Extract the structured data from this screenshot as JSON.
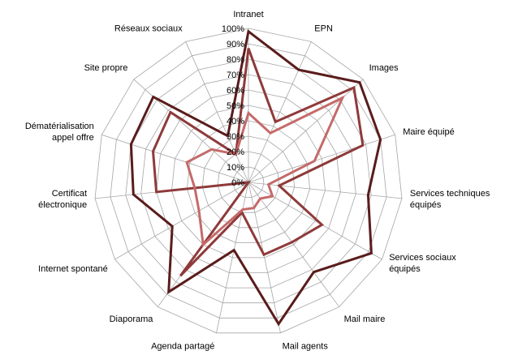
{
  "chart_data": {
    "type": "radar",
    "title": "",
    "categories": [
      [
        "Intranet"
      ],
      [
        "EPN"
      ],
      [
        "Images"
      ],
      [
        "Maire équipé"
      ],
      [
        "Services techniques",
        "équipés"
      ],
      [
        "Services sociaux",
        "équipés"
      ],
      [
        "Mail maire"
      ],
      [
        "Mail agents"
      ],
      [
        "Agenda partagé"
      ],
      [
        "Diaporama"
      ],
      [
        "Internet spontané"
      ],
      [
        "Certificat",
        "électronique"
      ],
      [
        "Dématérialisation",
        "appel offre"
      ],
      [
        "Site propre"
      ],
      [
        "Réseaux sociaux"
      ]
    ],
    "ticks": [
      "0%",
      "10%",
      "20%",
      "30%",
      "40%",
      "50%",
      "60%",
      "70%",
      "80%",
      "90%",
      "100%"
    ],
    "rmax": 100,
    "grid": true,
    "legend": "none",
    "series": [
      {
        "color": "#5a1c1c",
        "values": [
          98,
          80,
          97,
          90,
          78,
          92,
          72,
          94,
          45,
          88,
          57,
          75,
          80,
          83,
          33
        ]
      },
      {
        "color": "#8f3a3a",
        "values": [
          87,
          43,
          92,
          78,
          20,
          55,
          48,
          48,
          20,
          75,
          0,
          60,
          65,
          68,
          20
        ]
      },
      {
        "color": "#c56a6a",
        "values": [
          45,
          35,
          82,
          45,
          13,
          18,
          13,
          17,
          18,
          50,
          37,
          35,
          42,
          32,
          20
        ]
      }
    ]
  }
}
